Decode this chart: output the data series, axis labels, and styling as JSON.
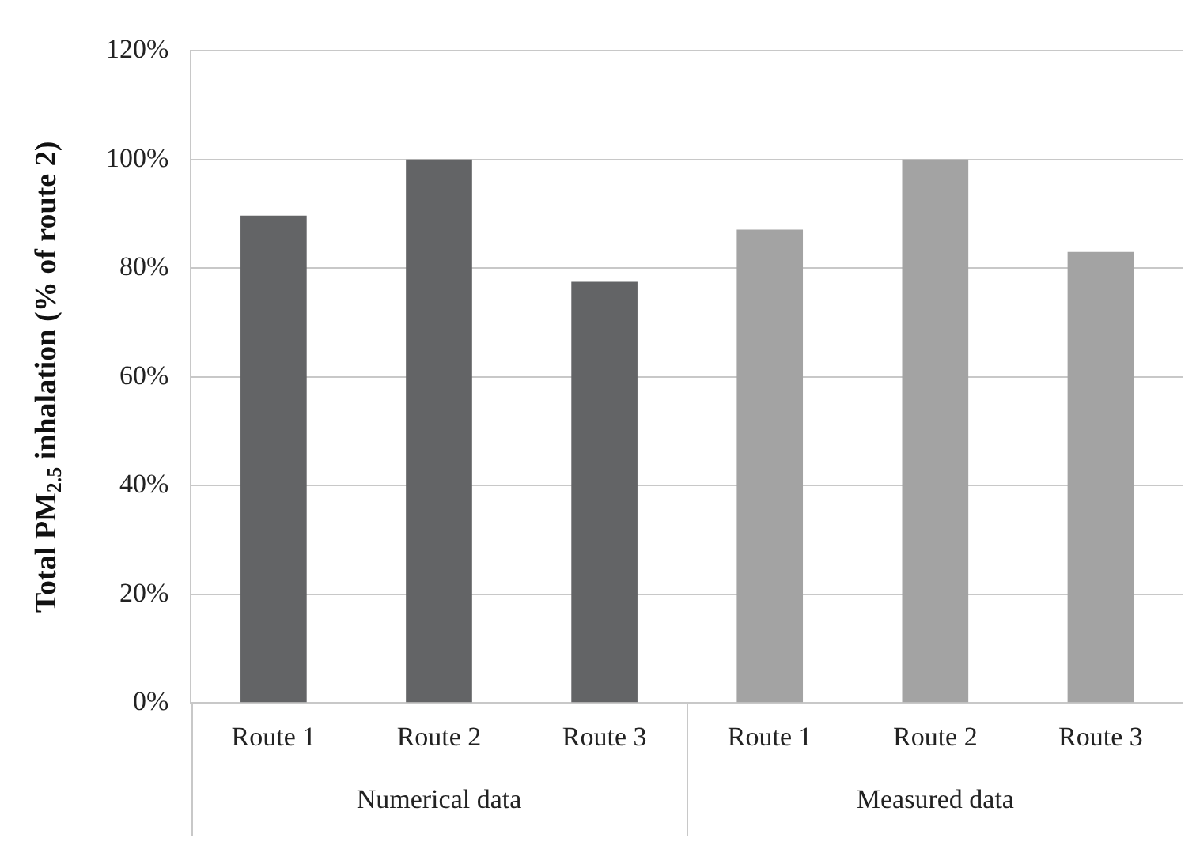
{
  "chart_data": {
    "type": "bar",
    "ylabel": "Total PM$_{2.5}$ inhalation (% of route 2)",
    "categories": [
      "Route 1",
      "Route 2",
      "Route 3",
      "Route 1",
      "Route 2",
      "Route 3"
    ],
    "values": [
      89.7,
      100,
      77.5,
      87.1,
      100,
      83.0
    ],
    "colors": [
      "#636466",
      "#636466",
      "#636466",
      "#a3a3a3",
      "#a3a3a3",
      "#a3a3a3"
    ],
    "annotations": [
      "Numerical data",
      "Measured data"
    ],
    "ylim": [
      0,
      120
    ],
    "yticks": [
      {
        "value": 0,
        "label": "0%"
      },
      {
        "value": 20,
        "label": "20%"
      },
      {
        "value": 40,
        "label": "40%"
      },
      {
        "value": 60,
        "label": "60%"
      },
      {
        "value": 80,
        "label": "80%"
      },
      {
        "value": 100,
        "label": "100%"
      },
      {
        "value": 120,
        "label": "120%"
      }
    ],
    "grid": "y",
    "legend": false
  }
}
